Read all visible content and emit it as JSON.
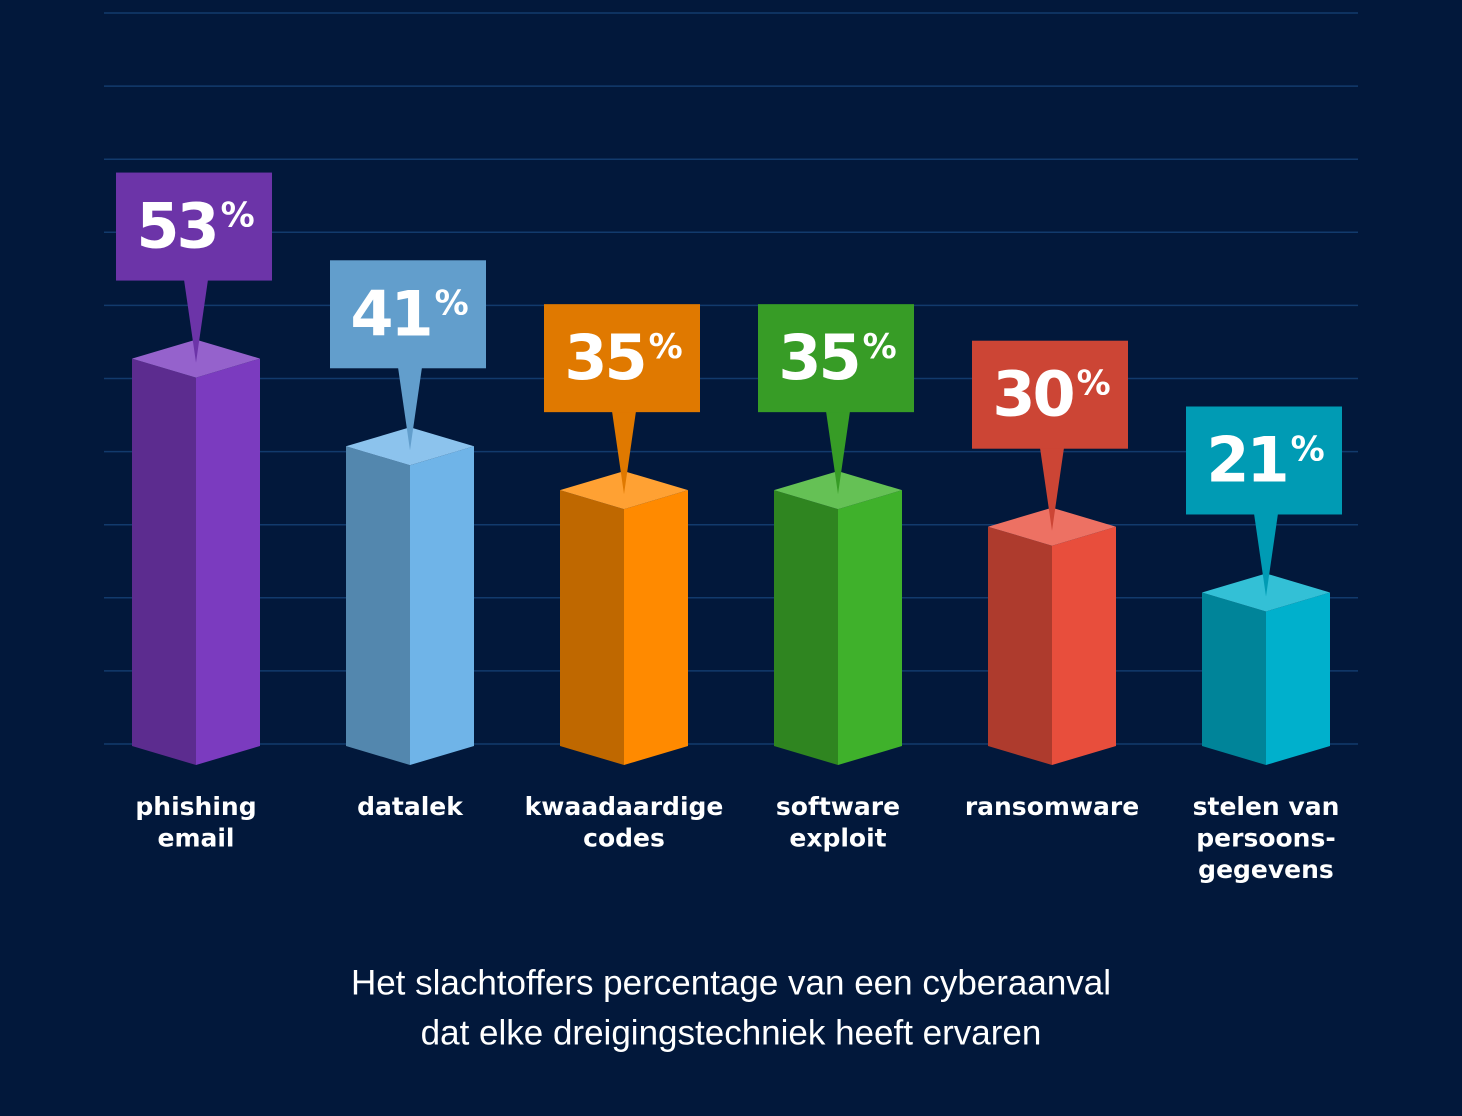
{
  "chart_data": {
    "type": "bar3d",
    "categories": [
      [
        "phishing",
        "email"
      ],
      [
        "datalek"
      ],
      [
        "kwaadaardige",
        "codes"
      ],
      [
        "software",
        "exploit"
      ],
      [
        "ransomware"
      ],
      [
        "stelen van",
        "persoons-",
        "gegevens"
      ]
    ],
    "values": [
      53,
      41,
      35,
      35,
      30,
      21
    ],
    "value_labels": [
      "53%",
      "41%",
      "35%",
      "35%",
      "30%",
      "21%"
    ],
    "colors": [
      "#7b3bbf",
      "#6fb4e8",
      "#ff8a00",
      "#3fb12b",
      "#e84e3c",
      "#00b0cc"
    ],
    "ylim": [
      0,
      100
    ],
    "caption": [
      "Het slachtoffers percentage van een cyberaanval",
      "dat elke dreigingstechniek heeft ervaren"
    ]
  }
}
